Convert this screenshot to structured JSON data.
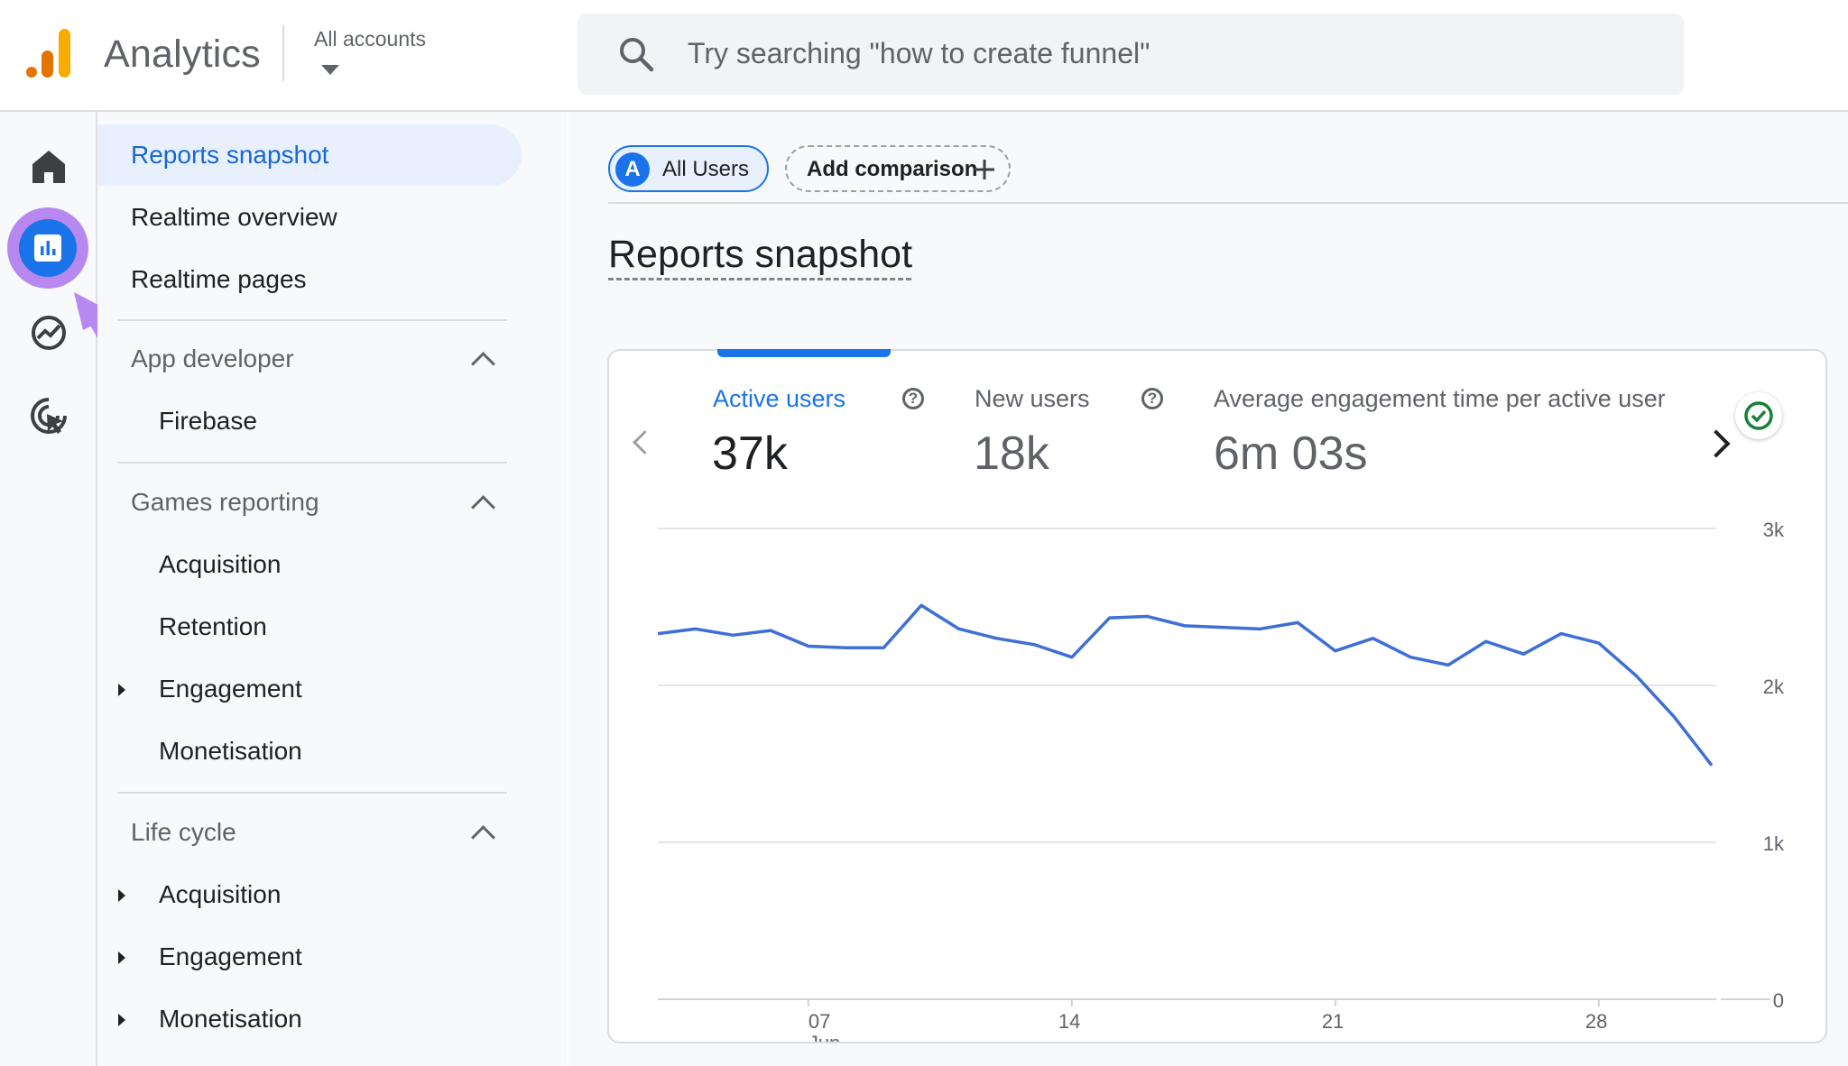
{
  "app": {
    "title": "Analytics",
    "accounts_label": "All accounts"
  },
  "search": {
    "placeholder": "Try searching \"how to create funnel\""
  },
  "nav": {
    "top_items": [
      "Reports snapshot",
      "Realtime overview",
      "Realtime pages"
    ],
    "sections": [
      {
        "title": "App developer",
        "items": [
          {
            "label": "Firebase",
            "expandable": false
          }
        ]
      },
      {
        "title": "Games reporting",
        "items": [
          {
            "label": "Acquisition",
            "expandable": false
          },
          {
            "label": "Retention",
            "expandable": false
          },
          {
            "label": "Engagement",
            "expandable": true
          },
          {
            "label": "Monetisation",
            "expandable": false
          }
        ]
      },
      {
        "title": "Life cycle",
        "items": [
          {
            "label": "Acquisition",
            "expandable": true
          },
          {
            "label": "Engagement",
            "expandable": true
          },
          {
            "label": "Monetisation",
            "expandable": true
          }
        ]
      }
    ]
  },
  "comparison": {
    "segment_avatar": "A",
    "segment_label": "All Users",
    "add_label": "Add comparison"
  },
  "page": {
    "title": "Reports snapshot"
  },
  "metrics": [
    {
      "label": "Active users",
      "value": "37k",
      "active": true
    },
    {
      "label": "New users",
      "value": "18k",
      "active": false
    },
    {
      "label": "Average engagement time per active user",
      "value": "6m 03s",
      "active": false
    }
  ],
  "colors": {
    "accent": "#1a73e8",
    "highlight": "#b788f0",
    "logo_orange": "#f9ab00",
    "logo_dark": "#e37400"
  },
  "chart_data": {
    "type": "line",
    "x": [
      "2025-06-03",
      "2025-06-04",
      "2025-06-05",
      "2025-06-06",
      "2025-06-07",
      "2025-06-08",
      "2025-06-09",
      "2025-06-10",
      "2025-06-11",
      "2025-06-12",
      "2025-06-13",
      "2025-06-14",
      "2025-06-15",
      "2025-06-16",
      "2025-06-17",
      "2025-06-18",
      "2025-06-19",
      "2025-06-20",
      "2025-06-21",
      "2025-06-22",
      "2025-06-23",
      "2025-06-24",
      "2025-06-25",
      "2025-06-26",
      "2025-06-27",
      "2025-06-28",
      "2025-06-29",
      "2025-06-30",
      "2025-07-01"
    ],
    "series": [
      {
        "values": [
          2330,
          2360,
          2320,
          2350,
          2250,
          2240,
          2240,
          2510,
          2360,
          2300,
          2260,
          2180,
          2430,
          2440,
          2380,
          2370,
          2360,
          2400,
          2220,
          2300,
          2180,
          2130,
          2280,
          2200,
          2330,
          2270,
          2060,
          1800,
          1490
        ]
      }
    ],
    "y_ticks": [
      "3k",
      "2k",
      "1k",
      "0"
    ],
    "x_ticks": [
      {
        "date": "2025-06-07",
        "label": "07",
        "sublabel": "Jun"
      },
      {
        "date": "2025-06-14",
        "label": "14"
      },
      {
        "date": "2025-06-21",
        "label": "21"
      },
      {
        "date": "2025-06-28",
        "label": "28"
      }
    ],
    "ylim": [
      0,
      3000
    ],
    "grid": true,
    "color": "#3e6fd6"
  }
}
